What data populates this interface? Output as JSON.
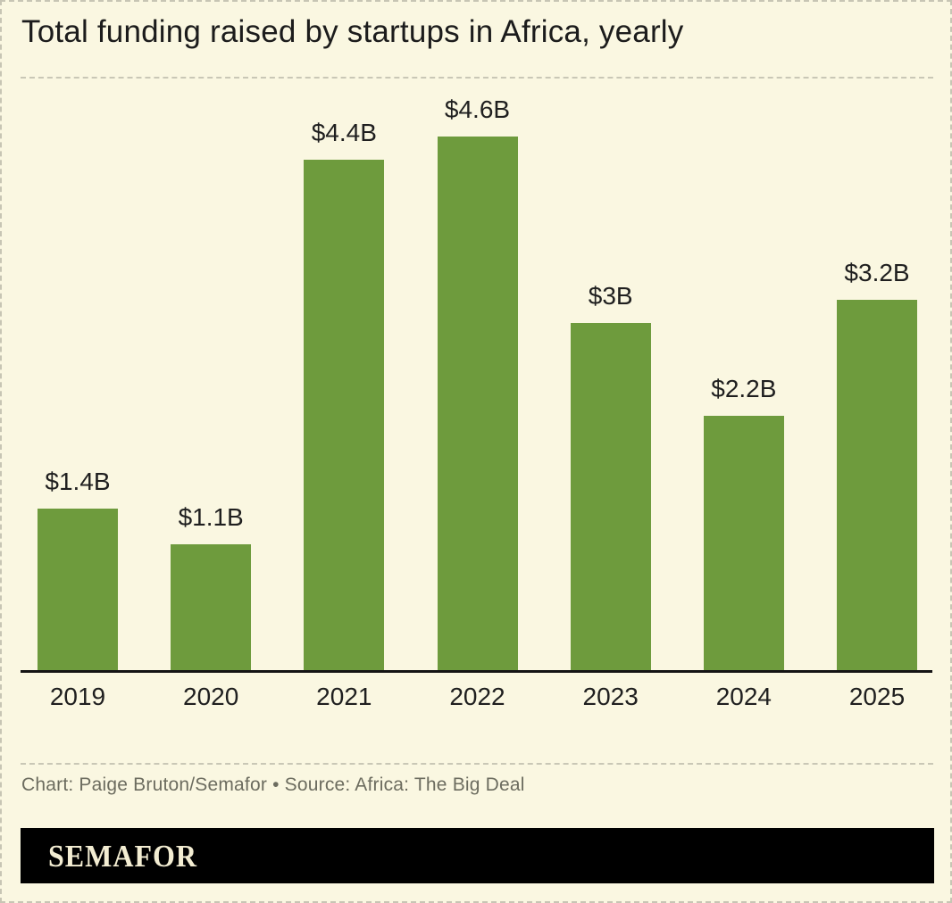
{
  "header": {
    "title": "Total funding raised by startups in Africa, yearly"
  },
  "chart_data": {
    "type": "bar",
    "title": "Total funding raised by startups in Africa, yearly",
    "categories": [
      "2019",
      "2020",
      "2021",
      "2022",
      "2023",
      "2024",
      "2025"
    ],
    "values": [
      1.4,
      1.1,
      4.4,
      4.6,
      3.0,
      2.2,
      3.2
    ],
    "value_labels": [
      "$1.4B",
      "$1.1B",
      "$4.4B",
      "$4.6B",
      "$3B",
      "$2.2B",
      "$3.2B"
    ],
    "unit": "USD billions",
    "xlabel": "",
    "ylabel": "",
    "ylim": [
      0,
      4.6
    ],
    "grid": false,
    "legend": false,
    "bar_color": "#6e9b3d"
  },
  "footer": {
    "credit": "Chart: Paige Bruton/Semafor • Source: Africa: The Big Deal",
    "logo_text": "SEMAFOR"
  },
  "colors": {
    "background": "#faf7e1",
    "bar": "#6e9b3d",
    "title_text": "#1c1c1c",
    "label_text": "#1f1f1f",
    "credit_text": "#6c6c5f",
    "axis_line": "#141414",
    "dashed_line": "#c9c7b6",
    "logo_background": "#000000",
    "logo_text": "#f3edd2"
  }
}
